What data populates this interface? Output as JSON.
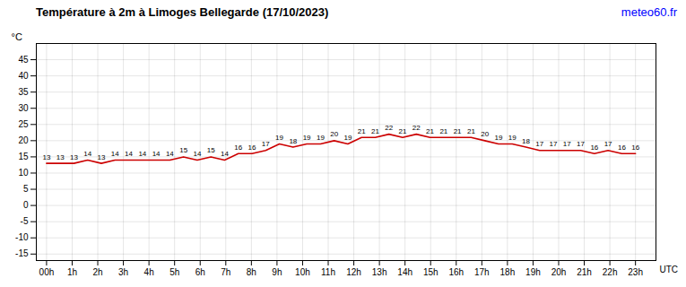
{
  "chart_data": {
    "type": "line",
    "title": "Température à 2m à Limoges Bellegarde (17/10/2023)",
    "xlabel": "UTC",
    "ylabel": "°C",
    "annotations": [
      {
        "text": "meteo60.fr",
        "color": "blue"
      }
    ],
    "x": [
      0,
      0.53488372093,
      1.06976744186,
      1.604651162791,
      2.139534883721,
      2.674418604651,
      3.209302325581,
      3.744186046512,
      4.279069767442,
      4.813953488372,
      5.348837209302,
      5.883720930233,
      6.418604651163,
      6.953488372093,
      7.488372093023,
      8.023255813953,
      8.558139534884,
      9.093023255814,
      9.627906976744,
      10.162790697674,
      10.697674418605,
      11.232558139535,
      11.767441860465,
      12.302325581395,
      12.837209302326,
      13.372093023256,
      13.906976744186,
      14.441860465116,
      14.976744186047,
      15.511627906977,
      16.046511627907,
      16.581395348837,
      17.116279069767,
      17.651162790698,
      18.186046511628,
      18.720930232558,
      19.255813953488,
      19.790697674419,
      20.325581395349,
      20.860465116279,
      21.395348837209,
      21.93023255814,
      22.46511627907,
      23
    ],
    "values": [
      13,
      13,
      13,
      14,
      13,
      14,
      14,
      14,
      14,
      14,
      15,
      14,
      15,
      14,
      16,
      16,
      17,
      19,
      18,
      19,
      19,
      20,
      19,
      21,
      21,
      22,
      21,
      22,
      21,
      21,
      21,
      21,
      20,
      19,
      19,
      18,
      17,
      17,
      17,
      17,
      16,
      17,
      16,
      16
    ],
    "color": "#cc0000",
    "data_labels": true,
    "xlim": [
      -0.4,
      23.8
    ],
    "xticks": [
      {
        "value": 0,
        "label": "00h"
      },
      {
        "value": 1,
        "label": "1h"
      },
      {
        "value": 2,
        "label": "2h"
      },
      {
        "value": 3,
        "label": "3h"
      },
      {
        "value": 4,
        "label": "4h"
      },
      {
        "value": 5,
        "label": "5h"
      },
      {
        "value": 6,
        "label": "6h"
      },
      {
        "value": 7,
        "label": "7h"
      },
      {
        "value": 8,
        "label": "8h"
      },
      {
        "value": 9,
        "label": "9h"
      },
      {
        "value": 10,
        "label": "10h"
      },
      {
        "value": 11,
        "label": "11h"
      },
      {
        "value": 12,
        "label": "12h"
      },
      {
        "value": 13,
        "label": "13h"
      },
      {
        "value": 14,
        "label": "14h"
      },
      {
        "value": 15,
        "label": "15h"
      },
      {
        "value": 16,
        "label": "16h"
      },
      {
        "value": 17,
        "label": "17h"
      },
      {
        "value": 18,
        "label": "18h"
      },
      {
        "value": 19,
        "label": "19h"
      },
      {
        "value": 20,
        "label": "20h"
      },
      {
        "value": 21,
        "label": "21h"
      },
      {
        "value": 22,
        "label": "22h"
      },
      {
        "value": 23,
        "label": "23h"
      }
    ],
    "ylim": [
      -17,
      50
    ],
    "yticks": [
      -15,
      -10,
      -5,
      0,
      5,
      10,
      15,
      20,
      25,
      30,
      35,
      40,
      45
    ],
    "grid": true
  }
}
